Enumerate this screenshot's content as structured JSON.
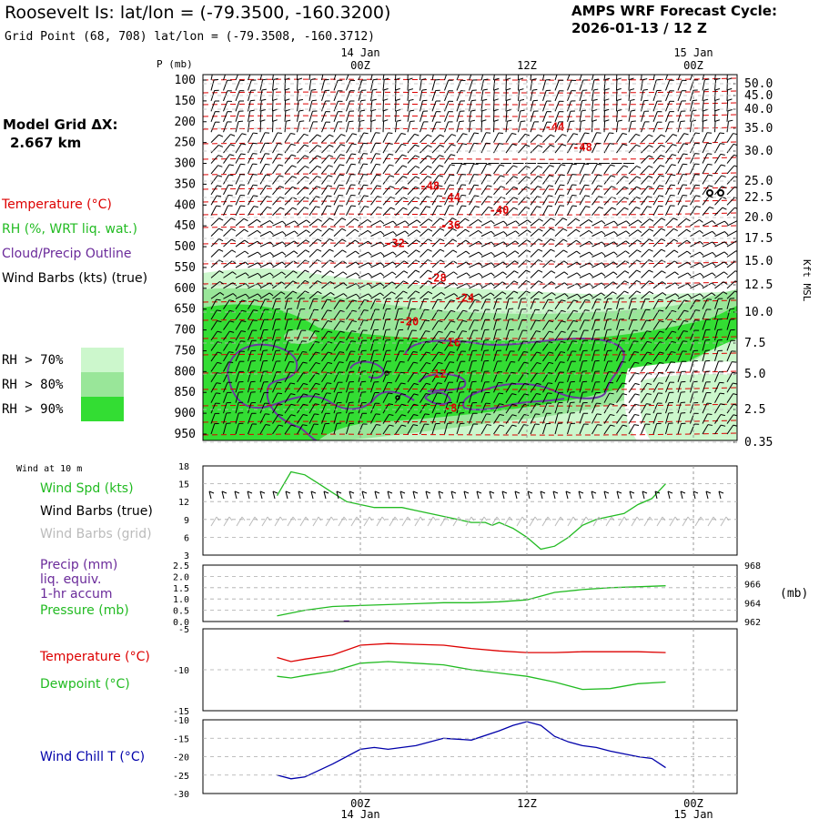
{
  "header": {
    "title": "Roosevelt Is:  lat/lon = (-79.3500, -160.3200)",
    "grid_point": "Grid Point (68, 708) lat/lon = (-79.3508, -160.3712)",
    "forecast_title": "AMPS WRF Forecast Cycle:",
    "cycle": "2026-01-13 / 12  Z"
  },
  "time_axis": {
    "top_dates": [
      "14 Jan",
      "15 Jan"
    ],
    "labels": [
      "00Z",
      "12Z",
      "00Z"
    ],
    "bottom_dates": [
      "14 Jan",
      "15 Jan"
    ]
  },
  "left_panel": {
    "model_grid_label": "Model Grid ΔX:",
    "model_grid_value": "2.667 km",
    "legend_temperature": "Temperature (°C)",
    "legend_rh": "RH (%, WRT liq. wat.)",
    "legend_cloud": "Cloud/Precip Outline",
    "legend_wind": "Wind Barbs (kts) (true)",
    "rh_levels": [
      "RH > 70%",
      "RH > 80%",
      "RH > 90%"
    ],
    "rh_colors": [
      "#ccf7cc",
      "#99e699",
      "#33dd33"
    ]
  },
  "chart_data": [
    {
      "type": "heatmap",
      "name": "upper-air cross section",
      "yaxis_left_label": "P (mb)",
      "yaxis_left_ticks": [
        "100",
        "150",
        "200",
        "250",
        "300",
        "350",
        "400",
        "450",
        "500",
        "550",
        "600",
        "650",
        "700",
        "750",
        "800",
        "850",
        "900",
        "950"
      ],
      "yaxis_right_label": "Kft MSL",
      "yaxis_right_ticks": [
        "50.0",
        "45.0",
        "40.0",
        "35.0",
        "30.0",
        "25.0",
        "22.5",
        "20.0",
        "17.5",
        "15.0",
        "12.5",
        "10.0",
        "7.5",
        "5.0",
        "2.5",
        "0.35"
      ],
      "temperature_labels": [
        {
          "text": "-44",
          "hour": 14,
          "p": 212
        },
        {
          "text": "-48",
          "hour": 16,
          "p": 262
        },
        {
          "text": "-48",
          "hour": 5,
          "p": 355
        },
        {
          "text": "-44",
          "hour": 6.5,
          "p": 382
        },
        {
          "text": "-40",
          "hour": 10,
          "p": 412
        },
        {
          "text": "-36",
          "hour": 6.5,
          "p": 448
        },
        {
          "text": "-32",
          "hour": 2.5,
          "p": 492
        },
        {
          "text": "-28",
          "hour": 5.5,
          "p": 575
        },
        {
          "text": "-24",
          "hour": 7.5,
          "p": 623
        },
        {
          "text": "-20",
          "hour": 3.5,
          "p": 680
        },
        {
          "text": "-16",
          "hour": 6.5,
          "p": 730
        },
        {
          "text": "-12",
          "hour": 5.5,
          "p": 806
        },
        {
          "text": "-8",
          "hour": 6.5,
          "p": 888
        }
      ]
    },
    {
      "type": "line",
      "name": "Wind at 10 m",
      "panel_title": "Wind at 10 m",
      "legend": [
        "Wind Spd (kts)",
        "Wind Barbs (true)",
        "Wind Barbs (grid)"
      ],
      "yticks": [
        "18",
        "15",
        "12",
        "9",
        "6",
        "3"
      ],
      "ylim": [
        3,
        18
      ],
      "series": [
        {
          "name": "Wind Spd (kts)",
          "color": "#22bb22",
          "x": [
            -6,
            -5.5,
            -5,
            -4,
            -3,
            -2,
            -1,
            0,
            1,
            2,
            3,
            4,
            5,
            6,
            7,
            8,
            9,
            9.5,
            10,
            10.5,
            11,
            12,
            13,
            14,
            15,
            16,
            17,
            18,
            19,
            20,
            21,
            22
          ],
          "values": [
            13,
            15,
            17,
            16.5,
            15,
            13.5,
            12,
            11.5,
            11,
            11,
            11,
            10.5,
            10,
            9.5,
            9,
            8.5,
            8.5,
            8,
            8.5,
            8,
            7.5,
            6,
            4,
            4.5,
            6,
            8,
            9,
            9.5,
            10,
            11.5,
            12.5,
            15
          ]
        }
      ]
    },
    {
      "type": "line",
      "name": "Precip and Pressure",
      "legend": [
        "Precip (mm)",
        "liq. equiv.",
        "1-hr accum",
        "Pressure (mb)"
      ],
      "yticks_left": [
        "2.5",
        "2.0",
        "1.5",
        "1.0",
        "0.5",
        "0.0"
      ],
      "ylim_left": [
        0,
        2.5
      ],
      "yticks_right": [
        "968",
        "966",
        "964",
        "962"
      ],
      "ylim_right": [
        962,
        968
      ],
      "right_unit": "(mb)",
      "series": [
        {
          "name": "Pressure (mb)",
          "color": "#22bb22",
          "x": [
            -6,
            -4,
            -2,
            0,
            2,
            4,
            6,
            8,
            10,
            12,
            13,
            14,
            16,
            18,
            20,
            22
          ],
          "values": [
            962.6,
            963.2,
            963.6,
            963.7,
            963.8,
            963.9,
            964,
            964,
            964.1,
            964.3,
            964.7,
            965.1,
            965.4,
            965.6,
            965.7,
            965.8
          ]
        },
        {
          "name": "Precip (mm)",
          "color": "#6a0dad",
          "x": [
            -1.2,
            -0.8
          ],
          "values": [
            0.02,
            0.02
          ]
        }
      ]
    },
    {
      "type": "line",
      "name": "Temperature and Dewpoint",
      "legend": [
        "Temperature (°C)",
        "Dewpoint (°C)"
      ],
      "yticks": [
        "-5",
        "-10",
        "-15"
      ],
      "ylim": [
        -15,
        -5
      ],
      "series": [
        {
          "name": "Temperature (°C)",
          "color": "#dd0000",
          "x": [
            -6,
            -5,
            -4,
            -2,
            0,
            2,
            4,
            6,
            8,
            10,
            12,
            14,
            16,
            18,
            20,
            22
          ],
          "values": [
            -8.5,
            -9,
            -8.7,
            -8.2,
            -7,
            -6.8,
            -6.9,
            -7,
            -7.4,
            -7.7,
            -7.9,
            -7.9,
            -7.8,
            -7.8,
            -7.8,
            -7.9
          ]
        },
        {
          "name": "Dewpoint (°C)",
          "color": "#22bb22",
          "x": [
            -6,
            -5,
            -4,
            -2,
            0,
            2,
            4,
            6,
            8,
            10,
            12,
            14,
            16,
            18,
            20,
            22
          ],
          "values": [
            -10.8,
            -11,
            -10.7,
            -10.2,
            -9.2,
            -9,
            -9.2,
            -9.4,
            -10,
            -10.4,
            -10.8,
            -11.5,
            -12.4,
            -12.3,
            -11.7,
            -11.5
          ]
        }
      ]
    },
    {
      "type": "line",
      "name": "Wind Chill",
      "legend": [
        "Wind Chill T (°C)"
      ],
      "yticks": [
        "-10",
        "-15",
        "-20",
        "-25",
        "-30"
      ],
      "ylim": [
        -30,
        -10
      ],
      "series": [
        {
          "name": "Wind Chill T (°C)",
          "color": "#0000aa",
          "x": [
            -6,
            -5,
            -4,
            -2,
            0,
            1,
            2,
            4,
            6,
            8,
            10,
            11,
            12,
            13,
            14,
            15,
            16,
            17,
            18,
            20,
            21,
            22
          ],
          "values": [
            -25,
            -26,
            -25.5,
            -22,
            -18,
            -17.5,
            -18,
            -17,
            -15,
            -15.5,
            -13,
            -11.5,
            -10.5,
            -11.5,
            -14.5,
            -16,
            -17,
            -17.5,
            -18.5,
            -20,
            -20.5,
            -23
          ]
        }
      ]
    }
  ]
}
